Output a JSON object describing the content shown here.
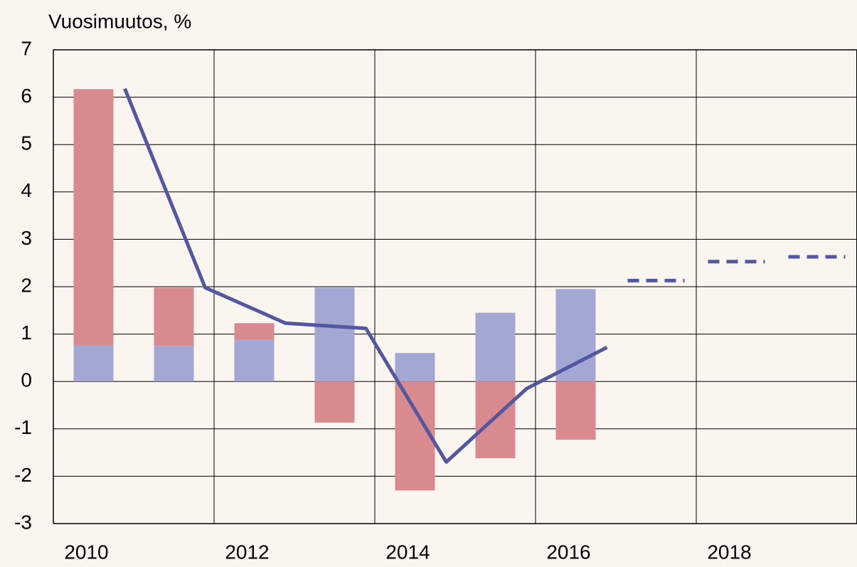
{
  "chart_data": {
    "type": "bar",
    "stacked": true,
    "title": "Vuosimuutos, %",
    "categories": [
      "2010",
      null,
      "2012",
      null,
      "2014",
      null,
      "2016",
      null,
      "2018",
      null
    ],
    "series": [
      {
        "type": "bar",
        "color": "#a3a7d4",
        "values": [
          0.77,
          0.75,
          0.88,
          1.98,
          0.6,
          1.45,
          1.95,
          null,
          null,
          null
        ]
      },
      {
        "type": "bar",
        "color": "#d98a8e",
        "values": [
          5.4,
          1.23,
          0.35,
          -0.87,
          -2.3,
          -1.62,
          -1.23,
          null,
          null,
          null
        ]
      },
      {
        "type": "line",
        "color": "#5257a0",
        "values": [
          6.18,
          1.98,
          1.23,
          1.12,
          -1.7,
          -0.15,
          0.72,
          null,
          null,
          null
        ]
      },
      {
        "type": "line",
        "color": "#5257a0",
        "dashed": true,
        "values": [
          null,
          null,
          null,
          null,
          null,
          null,
          null,
          2.13,
          2.53,
          2.63
        ]
      }
    ],
    "ylim": [
      -3,
      7
    ],
    "yticks": [
      -3,
      -2,
      -1,
      0,
      1,
      2,
      3,
      4,
      5,
      6,
      7
    ],
    "grid": true
  }
}
